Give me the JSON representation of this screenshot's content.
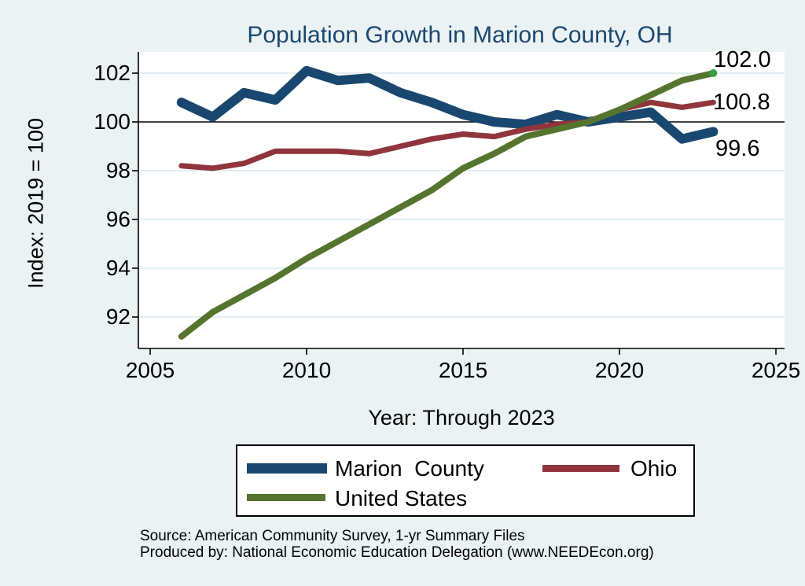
{
  "title": "Population Growth in Marion County, OH",
  "chart_data": {
    "type": "line",
    "x": [
      2006,
      2007,
      2008,
      2009,
      2010,
      2011,
      2012,
      2013,
      2014,
      2015,
      2016,
      2017,
      2018,
      2019,
      2020,
      2021,
      2022,
      2023
    ],
    "series": [
      {
        "name": "Marion County",
        "color": "#1a476f",
        "line_width": 12,
        "values": [
          100.8,
          100.2,
          101.2,
          100.9,
          102.1,
          101.7,
          101.8,
          101.2,
          100.8,
          100.3,
          100.0,
          99.9,
          100.3,
          100.0,
          100.2,
          100.4,
          99.3,
          99.6
        ],
        "end_label": "99.6"
      },
      {
        "name": "Ohio",
        "color": "#90353b",
        "line_width": 7,
        "values": [
          98.2,
          98.1,
          98.3,
          98.8,
          98.8,
          98.8,
          98.7,
          99.0,
          99.3,
          99.5,
          99.4,
          99.7,
          99.9,
          100.0,
          100.5,
          100.8,
          100.6,
          100.8
        ],
        "end_label": "100.8"
      },
      {
        "name": "United States",
        "color": "#55752f",
        "line_width": 8,
        "values": [
          91.2,
          92.2,
          92.9,
          93.6,
          94.4,
          95.1,
          95.8,
          96.5,
          97.2,
          98.1,
          98.7,
          99.4,
          99.7,
          100.0,
          100.5,
          101.1,
          101.7,
          102.0
        ],
        "end_label": "102.0",
        "endpoint_dot": true,
        "endpoint_dot_color": "#3e9e3e"
      }
    ],
    "title": "Population Growth in Marion County, OH",
    "xlabel": "Year: Through 2023",
    "ylabel": "Index: 2019 = 100",
    "x_ticks": [
      2005,
      2010,
      2015,
      2020,
      2025
    ],
    "y_ticks": [
      92,
      94,
      96,
      98,
      100,
      102
    ],
    "xlim": [
      2005,
      2025.3
    ],
    "ylim": [
      91,
      102.9
    ],
    "baseline": 100,
    "grid": true,
    "legend_position": "bottom"
  },
  "end_labels": {
    "united_states": "102.0",
    "ohio": "100.8",
    "marion_county": "99.6"
  },
  "legend": {
    "entries": [
      {
        "label": "Marion  County"
      },
      {
        "label": "Ohio"
      },
      {
        "label": "United States"
      }
    ]
  },
  "source": {
    "line1": "Source: American Community Survey, 1-yr Summary Files",
    "line2": "Produced by: National Economic Education Delegation (www.NEEDEcon.org)"
  },
  "palette": {
    "background": "#eaf2f3",
    "plot_background": "#ffffff",
    "grid": "#e3eef4",
    "axis": "#000000",
    "baseline": "#000000",
    "title": "#1a476f"
  }
}
